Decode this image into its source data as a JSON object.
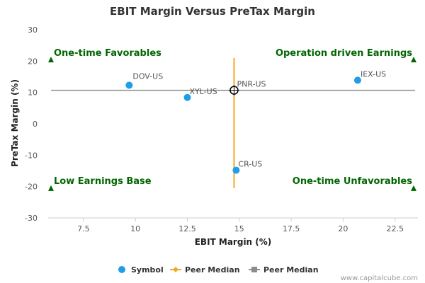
{
  "chart_data": {
    "type": "scatter",
    "title": "EBIT Margin Versus PreTax Margin",
    "xlabel": "EBIT Margin (%)",
    "ylabel": "PreTax Margin (%)",
    "xlim": [
      5.8,
      23.6
    ],
    "ylim": [
      -30,
      30
    ],
    "xticks": [
      7.5,
      10,
      12.5,
      15,
      17.5,
      20,
      22.5
    ],
    "xtick_labels": [
      "7.5",
      "10",
      "12.5",
      "15",
      "17.5",
      "20",
      "22.5"
    ],
    "yticks": [
      30,
      20,
      10,
      0,
      -10,
      -20,
      -30
    ],
    "ytick_labels": [
      "30",
      "20",
      "10",
      "0",
      "-10",
      "-20",
      "-30"
    ],
    "grid": false,
    "points": [
      {
        "label": "DOV-US",
        "x": 9.7,
        "y": 12.3
      },
      {
        "label": "XYL-US",
        "x": 12.5,
        "y": 8.4
      },
      {
        "label": "IEX-US",
        "x": 20.7,
        "y": 13.9
      },
      {
        "label": "CR-US",
        "x": 14.85,
        "y": -14.8
      },
      {
        "label": "PNR-US",
        "x": 14.75,
        "y": 10.7,
        "highlight": true
      }
    ],
    "peer_median_x": 14.75,
    "peer_median_y": 10.7,
    "peer_line_x_range": [
      -20.5,
      21
    ],
    "quadrant_labels": {
      "top_left": "One-time Favorables",
      "top_right": "Operation driven Earnings",
      "bottom_left": "Low Earnings Base",
      "bottom_right": "One-time Unfavorables"
    },
    "legend": [
      {
        "label": "Symbol",
        "marker": "circle",
        "color": "#1f9ee8"
      },
      {
        "label": "Peer Median",
        "marker": "diamond-line",
        "color": "#f5a623"
      },
      {
        "label": "Peer Median",
        "marker": "square-line",
        "color": "#8c8c8c"
      }
    ],
    "legend_position": "bottom",
    "colors": {
      "point": "#1f9ee8",
      "vline": "#f5a623",
      "hline": "#8c8c8c",
      "quadrant": "#006600",
      "axis": "#cccccc"
    }
  },
  "credit": "www.capitalcube.com"
}
